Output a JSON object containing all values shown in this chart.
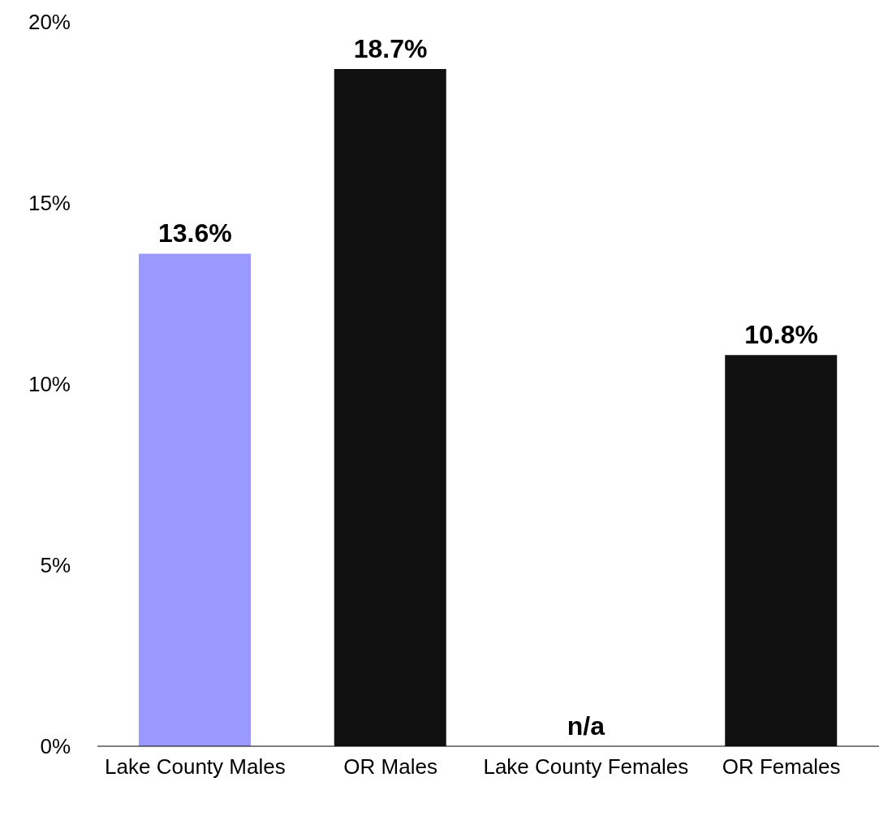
{
  "chart_data": {
    "type": "bar",
    "categories": [
      "Lake County Males",
      "OR Males",
      "Lake County Females",
      "OR Females"
    ],
    "values": [
      13.6,
      18.7,
      null,
      10.8
    ],
    "colors": [
      "#9999ff",
      "#111111",
      "#111111",
      "#111111"
    ],
    "value_labels": [
      "13.6%",
      "18.7%",
      "n/a",
      "10.8%"
    ],
    "ylim": [
      0,
      20
    ],
    "yticks": [
      {
        "value": 0,
        "label": "0%"
      },
      {
        "value": 5,
        "label": "5%"
      },
      {
        "value": 10,
        "label": "10%"
      },
      {
        "value": 15,
        "label": "15%"
      },
      {
        "value": 20,
        "label": "20%"
      }
    ],
    "grid": false,
    "legend": false
  }
}
